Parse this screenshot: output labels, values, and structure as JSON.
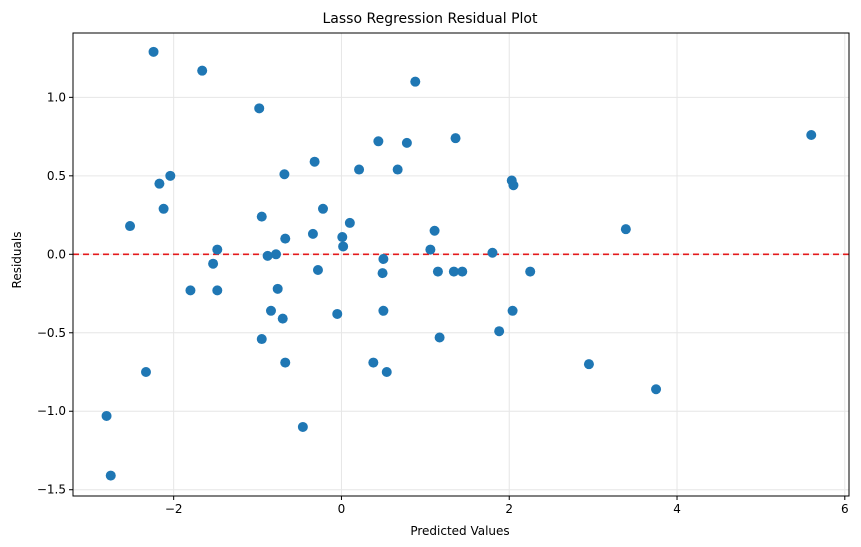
{
  "chart_data": {
    "type": "scatter",
    "title": "Lasso Regression Residual Plot",
    "xlabel": "Predicted Values",
    "ylabel": "Residuals",
    "xlim": [
      -3.2,
      6.05
    ],
    "ylim": [
      -1.54,
      1.41
    ],
    "xticks": [
      -2,
      0,
      2,
      4,
      6
    ],
    "yticks": [
      -1.5,
      -1.0,
      -0.5,
      0.0,
      0.5,
      1.0
    ],
    "xtick_labels": [
      "−2",
      "0",
      "2",
      "4",
      "6"
    ],
    "ytick_labels": [
      "−1.5",
      "−1.0",
      "−0.5",
      "0.0",
      "0.5",
      "1.0"
    ],
    "grid": true,
    "reference_line": {
      "y": 0,
      "color": "#e41a1c",
      "style": "dashed"
    },
    "point_color": "#1f77b4",
    "points": [
      {
        "x": -2.24,
        "y": 1.29
      },
      {
        "x": -1.66,
        "y": 1.17
      },
      {
        "x": -0.98,
        "y": 0.93
      },
      {
        "x": 0.88,
        "y": 1.1
      },
      {
        "x": 5.6,
        "y": 0.76
      },
      {
        "x": 1.36,
        "y": 0.74
      },
      {
        "x": 0.44,
        "y": 0.72
      },
      {
        "x": 0.78,
        "y": 0.71
      },
      {
        "x": -0.32,
        "y": 0.59
      },
      {
        "x": 0.21,
        "y": 0.54
      },
      {
        "x": 0.67,
        "y": 0.54
      },
      {
        "x": -0.68,
        "y": 0.51
      },
      {
        "x": -2.04,
        "y": 0.5
      },
      {
        "x": -2.17,
        "y": 0.45
      },
      {
        "x": 2.03,
        "y": 0.47
      },
      {
        "x": 2.05,
        "y": 0.44
      },
      {
        "x": -2.12,
        "y": 0.29
      },
      {
        "x": -0.22,
        "y": 0.29
      },
      {
        "x": -0.95,
        "y": 0.24
      },
      {
        "x": 0.1,
        "y": 0.2
      },
      {
        "x": -2.52,
        "y": 0.18
      },
      {
        "x": 1.11,
        "y": 0.15
      },
      {
        "x": 3.39,
        "y": 0.16
      },
      {
        "x": -0.34,
        "y": 0.13
      },
      {
        "x": -0.67,
        "y": 0.1
      },
      {
        "x": 0.01,
        "y": 0.11
      },
      {
        "x": 0.02,
        "y": 0.05
      },
      {
        "x": -1.48,
        "y": 0.03
      },
      {
        "x": 1.06,
        "y": 0.03
      },
      {
        "x": 1.8,
        "y": 0.01
      },
      {
        "x": -0.88,
        "y": -0.01
      },
      {
        "x": -0.78,
        "y": 0.0
      },
      {
        "x": 0.5,
        "y": -0.03
      },
      {
        "x": -1.53,
        "y": -0.06
      },
      {
        "x": -0.28,
        "y": -0.1
      },
      {
        "x": 0.49,
        "y": -0.12
      },
      {
        "x": 1.15,
        "y": -0.11
      },
      {
        "x": 1.34,
        "y": -0.11
      },
      {
        "x": 1.44,
        "y": -0.11
      },
      {
        "x": 2.25,
        "y": -0.11
      },
      {
        "x": -1.8,
        "y": -0.23
      },
      {
        "x": -1.48,
        "y": -0.23
      },
      {
        "x": -0.76,
        "y": -0.22
      },
      {
        "x": -0.84,
        "y": -0.36
      },
      {
        "x": 0.5,
        "y": -0.36
      },
      {
        "x": 2.04,
        "y": -0.36
      },
      {
        "x": -0.05,
        "y": -0.38
      },
      {
        "x": -0.7,
        "y": -0.41
      },
      {
        "x": 1.88,
        "y": -0.49
      },
      {
        "x": -0.95,
        "y": -0.54
      },
      {
        "x": 1.17,
        "y": -0.53
      },
      {
        "x": -0.67,
        "y": -0.69
      },
      {
        "x": 0.38,
        "y": -0.69
      },
      {
        "x": 0.54,
        "y": -0.75
      },
      {
        "x": 2.95,
        "y": -0.7
      },
      {
        "x": -2.33,
        "y": -0.75
      },
      {
        "x": 3.75,
        "y": -0.86
      },
      {
        "x": -2.8,
        "y": -1.03
      },
      {
        "x": -0.46,
        "y": -1.1
      },
      {
        "x": -2.75,
        "y": -1.41
      }
    ]
  }
}
